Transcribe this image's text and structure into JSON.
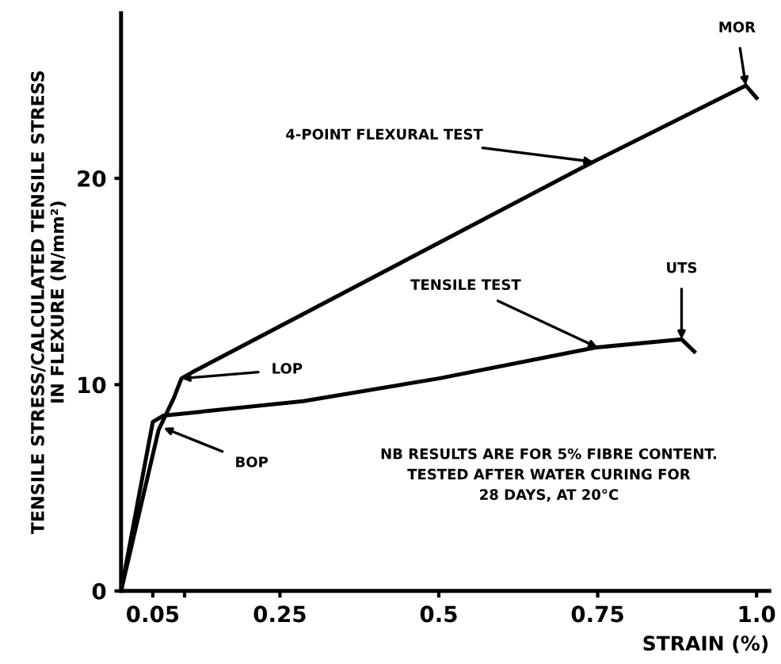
{
  "chart_data": {
    "type": "line",
    "xlabel": "STRAIN (%)",
    "ylabel": "TENSILE STRESS/CALCULATED TENSILE STRESS\nIN FLEXURE (N/mm²)",
    "xlim": [
      0,
      1.02
    ],
    "ylim": [
      0,
      28
    ],
    "xticks": [
      {
        "value": 0.05,
        "label": "0.05"
      },
      {
        "value": 0.1,
        "label": null
      },
      {
        "value": 0.25,
        "label": "0.25"
      },
      {
        "value": 0.5,
        "label": "0.5"
      },
      {
        "value": 0.75,
        "label": "0.75"
      },
      {
        "value": 1.0,
        "label": "1.0"
      }
    ],
    "yticks": [
      0,
      10,
      20
    ],
    "grid": false,
    "legend": false,
    "marker": "none",
    "line_style": "solid",
    "series": [
      {
        "color": "#000000",
        "x": [
          0,
          0.059,
          0.083,
          0.095,
          0.112,
          0.743,
          0.983,
          1.0
        ],
        "values": [
          0,
          7.8,
          9.35,
          10.3,
          10.6,
          20.8,
          24.5,
          23.9
        ]
      },
      {
        "color": "#000000",
        "x": [
          0,
          0.05,
          0.067,
          0.287,
          0.5,
          0.747,
          0.882,
          0.902
        ],
        "values": [
          0,
          8.2,
          8.5,
          9.2,
          10.3,
          11.8,
          12.2,
          11.6
        ]
      }
    ],
    "annotations": [
      {
        "text": "4-POINT FLEXURAL TEST",
        "x": 0.743,
        "y": 20.8
      },
      {
        "text": "MOR",
        "x": 0.983,
        "y": 24.5
      },
      {
        "text": "TENSILE TEST",
        "x": 0.75,
        "y": 11.8
      },
      {
        "text": "UTS",
        "x": 0.882,
        "y": 12.2
      },
      {
        "text": "LOP",
        "x": 0.095,
        "y": 10.3
      },
      {
        "text": "BOP",
        "x": 0.067,
        "y": 7.9
      },
      "NB RESULTS ARE FOR 5% FIBRE CONTENT.\nTESTED AFTER WATER CURING FOR\n28 DAYS, AT 20°C"
    ]
  }
}
